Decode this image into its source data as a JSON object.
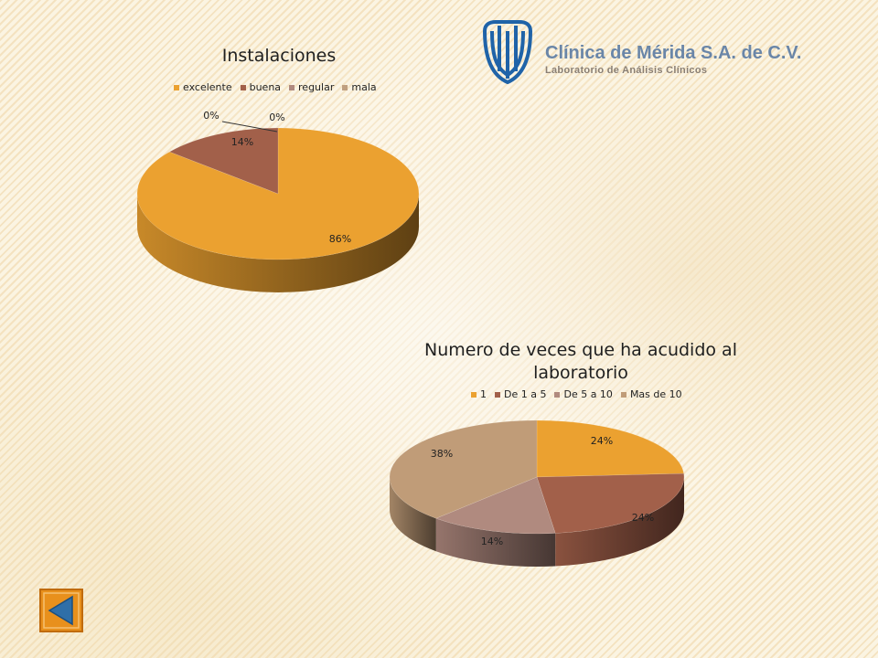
{
  "header": {
    "clinic_name": "Clínica de Mérida S.A. de C.V.",
    "clinic_subtitle": "Laboratorio de Análisis Clínicos",
    "logo_icon": "clinic-logo-icon",
    "logo_color": "#1f63a8"
  },
  "chart_data": [
    {
      "type": "pie",
      "title": "Instalaciones",
      "legend_position": "top",
      "categories": [
        "excelente",
        "buena",
        "regular",
        "mala"
      ],
      "values": [
        86,
        14,
        0,
        0
      ],
      "labels": [
        "86%",
        "14%",
        "0%",
        "0%"
      ],
      "colors": [
        "#eba130",
        "#a2604a",
        "#b08a7f",
        "#c0a080"
      ]
    },
    {
      "type": "pie",
      "title": "Numero de veces que ha acudido al laboratorio",
      "legend_position": "top",
      "categories": [
        "1",
        "De 1 a 5",
        "De 5 a 10",
        "Mas de 10"
      ],
      "values": [
        24,
        24,
        14,
        38
      ],
      "labels": [
        "24%",
        "24%",
        "14%",
        "38%"
      ],
      "colors": [
        "#eba130",
        "#a2604a",
        "#b08a7f",
        "#c09c78"
      ]
    }
  ],
  "navigation": {
    "back_icon": "back-arrow-icon",
    "button_color": "#e8901c",
    "arrow_color": "#2f6fa8"
  }
}
